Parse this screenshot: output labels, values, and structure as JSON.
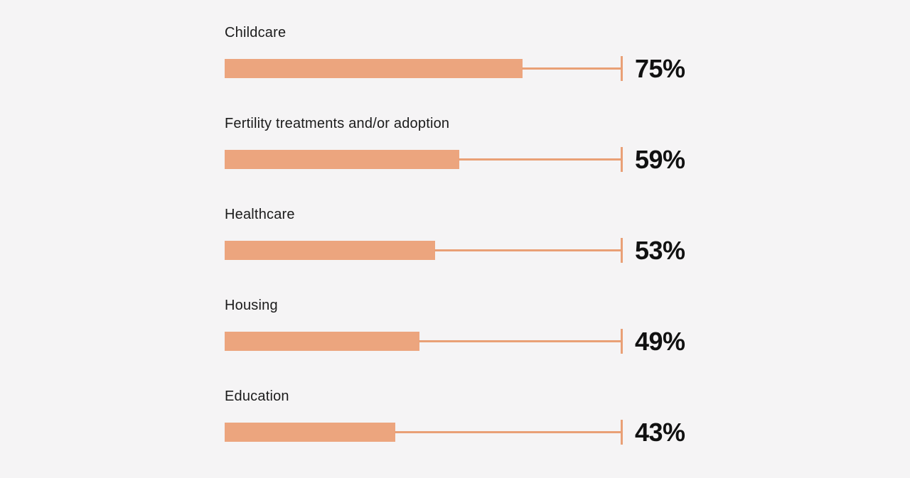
{
  "page": {
    "background_color": "#f5f4f5"
  },
  "chart_data": {
    "type": "bar",
    "orientation": "horizontal",
    "categories": [
      "Childcare",
      "Fertility treatments and/or adoption",
      "Healthcare",
      "Housing",
      "Education"
    ],
    "values": [
      75,
      59,
      53,
      49,
      43
    ],
    "value_labels": [
      "75%",
      "59%",
      "53%",
      "49%",
      "43%"
    ],
    "xlim": [
      0,
      100
    ],
    "axis_end_marker_value": 100,
    "grid": false,
    "legend": false,
    "bar_color": "#eca57e",
    "track_line_color": "#e9a076",
    "category_label_color": "#1b1b1b",
    "value_label_color": "#111111"
  }
}
